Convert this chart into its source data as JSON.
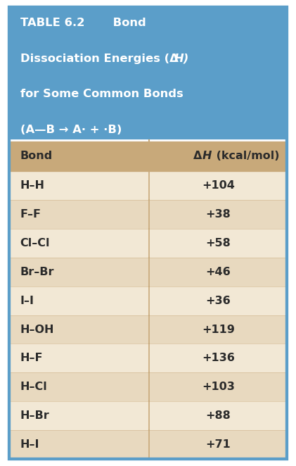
{
  "title_line1": "TABLE 6.2       Bond",
  "title_line2": "Dissociation Energies (ΔH)",
  "title_line3": "for Some Common Bonds",
  "title_line4": "(A—B → A· + ·B)",
  "header_bond": "Bond",
  "header_dh": "ΔH (kcal/mol)",
  "bonds": [
    "H–H",
    "F–F",
    "Cl–Cl",
    "Br–Br",
    "I–I",
    "H–OH",
    "H–F",
    "H–Cl",
    "H–Br",
    "H–I"
  ],
  "values": [
    "+104",
    "+38",
    "+58",
    "+46",
    "+36",
    "+119",
    "+136",
    "+103",
    "+88",
    "+71"
  ],
  "title_bg": "#5B9EC9",
  "header_bg": "#C8A97A",
  "row_bg_light": "#F2E8D5",
  "row_bg_dark": "#E8D9BF",
  "border_color": "#5B9EC9",
  "title_text_color": "#FFFFFF",
  "header_text_color": "#2B2B2B",
  "row_text_color": "#2B2B2B",
  "divider_color": "#C8A97A",
  "fig_width": 4.21,
  "fig_height": 6.62
}
